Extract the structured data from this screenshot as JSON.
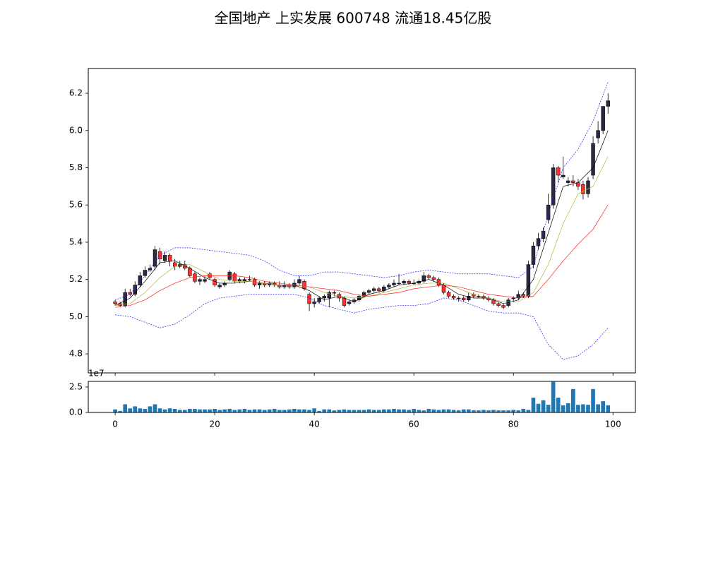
{
  "chart_data": [
    {
      "type": "candlestick",
      "title": "全国地产 上实发展 600748 流通18.45亿股",
      "up_color": "#2a2a40",
      "down_color": "#ff3030",
      "xlim": [
        -5.4,
        104.5
      ],
      "ylim": [
        4.698,
        6.333
      ],
      "xticks": [
        0,
        20,
        40,
        60,
        80,
        100
      ],
      "yticks": [
        4.8,
        {
          "value": 5,
          "label": "5.0"
        },
        5.2,
        5.4,
        5.6,
        5.8,
        {
          "value": 6,
          "label": "6.0"
        },
        6.2
      ],
      "ohlc": [
        [
          5.08,
          5.09,
          5.06,
          5.07
        ],
        [
          5.07,
          5.08,
          5.05,
          5.06
        ],
        [
          5.06,
          5.15,
          5.05,
          5.13
        ],
        [
          5.13,
          5.15,
          5.11,
          5.12
        ],
        [
          5.12,
          5.19,
          5.11,
          5.17
        ],
        [
          5.17,
          5.24,
          5.16,
          5.22
        ],
        [
          5.22,
          5.27,
          5.21,
          5.25
        ],
        [
          5.25,
          5.28,
          5.24,
          5.26
        ],
        [
          5.27,
          5.38,
          5.25,
          5.36
        ],
        [
          5.35,
          5.37,
          5.28,
          5.31
        ],
        [
          5.3,
          5.35,
          5.29,
          5.33
        ],
        [
          5.33,
          5.34,
          5.27,
          5.3
        ],
        [
          5.29,
          5.31,
          5.25,
          5.27
        ],
        [
          5.27,
          5.3,
          5.26,
          5.28
        ],
        [
          5.28,
          5.3,
          5.25,
          5.26
        ],
        [
          5.26,
          5.27,
          5.21,
          5.22
        ],
        [
          5.23,
          5.24,
          5.18,
          5.19
        ],
        [
          5.19,
          5.21,
          5.17,
          5.2
        ],
        [
          5.19,
          5.22,
          5.18,
          5.2
        ],
        [
          5.23,
          5.24,
          5.2,
          5.21
        ],
        [
          5.2,
          5.21,
          5.16,
          5.17
        ],
        [
          5.16,
          5.18,
          5.15,
          5.17
        ],
        [
          5.17,
          5.19,
          5.16,
          5.18
        ],
        [
          5.2,
          5.25,
          5.19,
          5.24
        ],
        [
          5.23,
          5.24,
          5.18,
          5.19
        ],
        [
          5.19,
          5.21,
          5.18,
          5.2
        ],
        [
          5.19,
          5.21,
          5.18,
          5.2
        ],
        [
          5.2,
          5.22,
          5.19,
          5.2
        ],
        [
          5.2,
          5.21,
          5.16,
          5.17
        ],
        [
          5.17,
          5.19,
          5.15,
          5.18
        ],
        [
          5.18,
          5.19,
          5.16,
          5.17
        ],
        [
          5.17,
          5.19,
          5.16,
          5.18
        ],
        [
          5.18,
          5.19,
          5.16,
          5.17
        ],
        [
          5.17,
          5.19,
          5.15,
          5.16
        ],
        [
          5.16,
          5.19,
          5.15,
          5.17
        ],
        [
          5.17,
          5.18,
          5.15,
          5.16
        ],
        [
          5.16,
          5.2,
          5.15,
          5.18
        ],
        [
          5.18,
          5.22,
          5.17,
          5.2
        ],
        [
          5.19,
          5.2,
          5.14,
          5.15
        ],
        [
          5.12,
          5.13,
          5.03,
          5.07
        ],
        [
          5.07,
          5.1,
          5.05,
          5.08
        ],
        [
          5.08,
          5.11,
          5.07,
          5.1
        ],
        [
          5.1,
          5.12,
          5.08,
          5.11
        ],
        [
          5.1,
          5.14,
          5.05,
          5.13
        ],
        [
          5.13,
          5.14,
          5.11,
          5.13
        ],
        [
          5.12,
          5.13,
          5.08,
          5.1
        ],
        [
          5.1,
          5.11,
          5.05,
          5.06
        ],
        [
          5.07,
          5.09,
          5.06,
          5.08
        ],
        [
          5.08,
          5.1,
          5.07,
          5.09
        ],
        [
          5.09,
          5.12,
          5.08,
          5.11
        ],
        [
          5.11,
          5.14,
          5.1,
          5.13
        ],
        [
          5.13,
          5.15,
          5.12,
          5.14
        ],
        [
          5.14,
          5.16,
          5.13,
          5.15
        ],
        [
          5.15,
          5.16,
          5.13,
          5.14
        ],
        [
          5.14,
          5.17,
          5.13,
          5.16
        ],
        [
          5.16,
          5.18,
          5.15,
          5.17
        ],
        [
          5.17,
          5.2,
          5.16,
          5.18
        ],
        [
          5.18,
          5.23,
          5.17,
          5.18
        ],
        [
          5.18,
          5.2,
          5.17,
          5.19
        ],
        [
          5.19,
          5.2,
          5.17,
          5.18
        ],
        [
          5.18,
          5.2,
          5.17,
          5.18
        ],
        [
          5.18,
          5.2,
          5.17,
          5.19
        ],
        [
          5.19,
          5.24,
          5.18,
          5.22
        ],
        [
          5.22,
          5.23,
          5.2,
          5.21
        ],
        [
          5.21,
          5.22,
          5.19,
          5.2
        ],
        [
          5.2,
          5.21,
          5.16,
          5.17
        ],
        [
          5.17,
          5.18,
          5.12,
          5.13
        ],
        [
          5.13,
          5.14,
          5.1,
          5.11
        ],
        [
          5.11,
          5.12,
          5.09,
          5.1
        ],
        [
          5.1,
          5.11,
          5.08,
          5.1
        ],
        [
          5.1,
          5.11,
          5.08,
          5.09
        ],
        [
          5.09,
          5.13,
          5.08,
          5.11
        ],
        [
          5.12,
          5.13,
          5.1,
          5.11
        ],
        [
          5.11,
          5.12,
          5.1,
          5.11
        ],
        [
          5.11,
          5.12,
          5.09,
          5.1
        ],
        [
          5.1,
          5.11,
          5.08,
          5.09
        ],
        [
          5.09,
          5.1,
          5.06,
          5.07
        ],
        [
          5.07,
          5.08,
          5.05,
          5.06
        ],
        [
          5.06,
          5.07,
          5.04,
          5.05
        ],
        [
          5.06,
          5.1,
          5.05,
          5.09
        ],
        [
          5.1,
          5.11,
          5.08,
          5.1
        ],
        [
          5.1,
          5.14,
          5.09,
          5.12
        ],
        [
          5.12,
          5.13,
          5.1,
          5.11
        ],
        [
          5.11,
          5.3,
          5.1,
          5.28
        ],
        [
          5.28,
          5.4,
          5.26,
          5.38
        ],
        [
          5.38,
          5.45,
          5.36,
          5.42
        ],
        [
          5.42,
          5.48,
          5.4,
          5.46
        ],
        [
          5.52,
          5.66,
          5.5,
          5.6
        ],
        [
          5.6,
          5.82,
          5.58,
          5.8
        ],
        [
          5.8,
          5.81,
          5.72,
          5.76
        ],
        [
          5.75,
          5.86,
          5.74,
          5.76
        ],
        [
          5.72,
          5.75,
          5.7,
          5.73
        ],
        [
          5.73,
          5.76,
          5.7,
          5.72
        ],
        [
          5.72,
          5.74,
          5.68,
          5.7
        ],
        [
          5.71,
          5.73,
          5.63,
          5.66
        ],
        [
          5.66,
          5.75,
          5.64,
          5.73
        ],
        [
          5.76,
          5.97,
          5.74,
          5.93
        ],
        [
          5.96,
          6.05,
          5.93,
          6.0
        ],
        [
          6.0,
          6.13,
          5.98,
          6.13
        ],
        [
          6.13,
          6.2,
          6.09,
          6.16
        ]
      ],
      "series": [
        {
          "color": "#000000",
          "dash": false,
          "x": [
            0,
            3,
            6,
            9,
            12,
            15,
            18,
            21,
            24,
            27,
            30,
            33,
            36,
            39,
            42,
            45,
            48,
            51,
            54,
            57,
            60,
            63,
            66,
            69,
            72,
            75,
            78,
            81,
            84,
            87,
            90,
            93,
            96,
            99
          ],
          "values": [
            5.06,
            5.1,
            5.19,
            5.29,
            5.3,
            5.26,
            5.21,
            5.18,
            5.18,
            5.19,
            5.18,
            5.17,
            5.17,
            5.14,
            5.09,
            5.11,
            5.08,
            5.12,
            5.14,
            5.17,
            5.18,
            5.2,
            5.17,
            5.12,
            5.1,
            5.1,
            5.07,
            5.09,
            5.2,
            5.45,
            5.7,
            5.72,
            5.8,
            6.0
          ]
        },
        {
          "color": "#b5b535",
          "dash": false,
          "x": [
            0,
            3,
            6,
            9,
            12,
            15,
            18,
            21,
            24,
            27,
            30,
            33,
            36,
            39,
            42,
            45,
            48,
            51,
            54,
            57,
            60,
            63,
            66,
            69,
            72,
            75,
            78,
            81,
            84,
            87,
            90,
            93,
            96,
            99
          ],
          "values": [
            5.06,
            5.07,
            5.13,
            5.21,
            5.27,
            5.28,
            5.24,
            5.2,
            5.19,
            5.19,
            5.18,
            5.17,
            5.17,
            5.16,
            5.13,
            5.11,
            5.1,
            5.11,
            5.13,
            5.15,
            5.17,
            5.18,
            5.18,
            5.15,
            5.12,
            5.1,
            5.08,
            5.08,
            5.13,
            5.28,
            5.5,
            5.66,
            5.7,
            5.86
          ]
        },
        {
          "color": "#ff2020",
          "dash": false,
          "x": [
            0,
            3,
            6,
            9,
            12,
            15,
            18,
            21,
            24,
            27,
            30,
            33,
            36,
            39,
            42,
            45,
            48,
            51,
            54,
            57,
            60,
            63,
            66,
            69,
            72,
            75,
            78,
            81,
            84,
            87,
            90,
            93,
            96,
            99
          ],
          "values": [
            5.05,
            5.06,
            5.09,
            5.14,
            5.18,
            5.21,
            5.22,
            5.22,
            5.22,
            5.21,
            5.19,
            5.18,
            5.17,
            5.16,
            5.15,
            5.14,
            5.12,
            5.11,
            5.12,
            5.13,
            5.15,
            5.16,
            5.17,
            5.16,
            5.14,
            5.12,
            5.11,
            5.1,
            5.11,
            5.2,
            5.3,
            5.39,
            5.47,
            5.6
          ]
        },
        {
          "color": "#2020ff",
          "dash": true,
          "x": [
            0,
            3,
            6,
            9,
            12,
            15,
            18,
            21,
            24,
            27,
            30,
            33,
            36,
            39,
            42,
            45,
            48,
            51,
            54,
            57,
            60,
            63,
            66,
            69,
            72,
            75,
            78,
            81,
            84,
            87,
            90,
            93,
            96,
            99
          ],
          "values": [
            5.09,
            5.12,
            5.22,
            5.33,
            5.37,
            5.37,
            5.36,
            5.35,
            5.34,
            5.33,
            5.3,
            5.25,
            5.22,
            5.22,
            5.24,
            5.24,
            5.23,
            5.22,
            5.21,
            5.22,
            5.24,
            5.25,
            5.24,
            5.23,
            5.23,
            5.23,
            5.22,
            5.21,
            5.27,
            5.55,
            5.8,
            5.9,
            6.05,
            6.26
          ]
        },
        {
          "color": "#2020ff",
          "dash": true,
          "x": [
            0,
            3,
            6,
            9,
            12,
            15,
            18,
            21,
            24,
            27,
            30,
            33,
            36,
            39,
            42,
            45,
            48,
            51,
            54,
            57,
            60,
            63,
            66,
            69,
            72,
            75,
            78,
            81,
            84,
            87,
            90,
            93,
            96,
            99
          ],
          "values": [
            5.01,
            5.0,
            4.97,
            4.94,
            4.96,
            5.01,
            5.07,
            5.1,
            5.11,
            5.12,
            5.12,
            5.12,
            5.12,
            5.1,
            5.06,
            5.04,
            5.02,
            5.04,
            5.05,
            5.06,
            5.06,
            5.07,
            5.1,
            5.09,
            5.06,
            5.03,
            5.02,
            5.02,
            5.0,
            4.85,
            4.77,
            4.79,
            4.85,
            4.94
          ]
        }
      ]
    },
    {
      "type": "bar",
      "color": "#1f77b4",
      "offset_text": "1e7",
      "xlim": [
        -5.4,
        104.5
      ],
      "ylim": [
        0,
        3.05
      ],
      "xticks": [
        0,
        20,
        40,
        60,
        80,
        100
      ],
      "yticks": [
        {
          "value": 0,
          "label": "0.0"
        },
        2.5
      ],
      "values": [
        0.3,
        0.15,
        0.8,
        0.4,
        0.6,
        0.4,
        0.35,
        0.6,
        0.8,
        0.4,
        0.3,
        0.4,
        0.35,
        0.25,
        0.25,
        0.35,
        0.35,
        0.3,
        0.3,
        0.3,
        0.35,
        0.25,
        0.3,
        0.35,
        0.25,
        0.3,
        0.35,
        0.25,
        0.3,
        0.3,
        0.25,
        0.3,
        0.35,
        0.25,
        0.25,
        0.3,
        0.35,
        0.3,
        0.3,
        0.25,
        0.4,
        0.15,
        0.3,
        0.3,
        0.2,
        0.25,
        0.3,
        0.25,
        0.25,
        0.25,
        0.25,
        0.3,
        0.25,
        0.25,
        0.3,
        0.3,
        0.35,
        0.3,
        0.3,
        0.25,
        0.35,
        0.25,
        0.2,
        0.35,
        0.3,
        0.25,
        0.3,
        0.3,
        0.25,
        0.2,
        0.3,
        0.3,
        0.2,
        0.2,
        0.25,
        0.2,
        0.25,
        0.2,
        0.2,
        0.2,
        0.25,
        0.2,
        0.35,
        0.25,
        1.45,
        0.85,
        1.2,
        0.75,
        3.0,
        1.45,
        0.7,
        0.9,
        2.3,
        0.75,
        0.8,
        0.75,
        2.3,
        0.8,
        1.1,
        0.7
      ]
    }
  ]
}
